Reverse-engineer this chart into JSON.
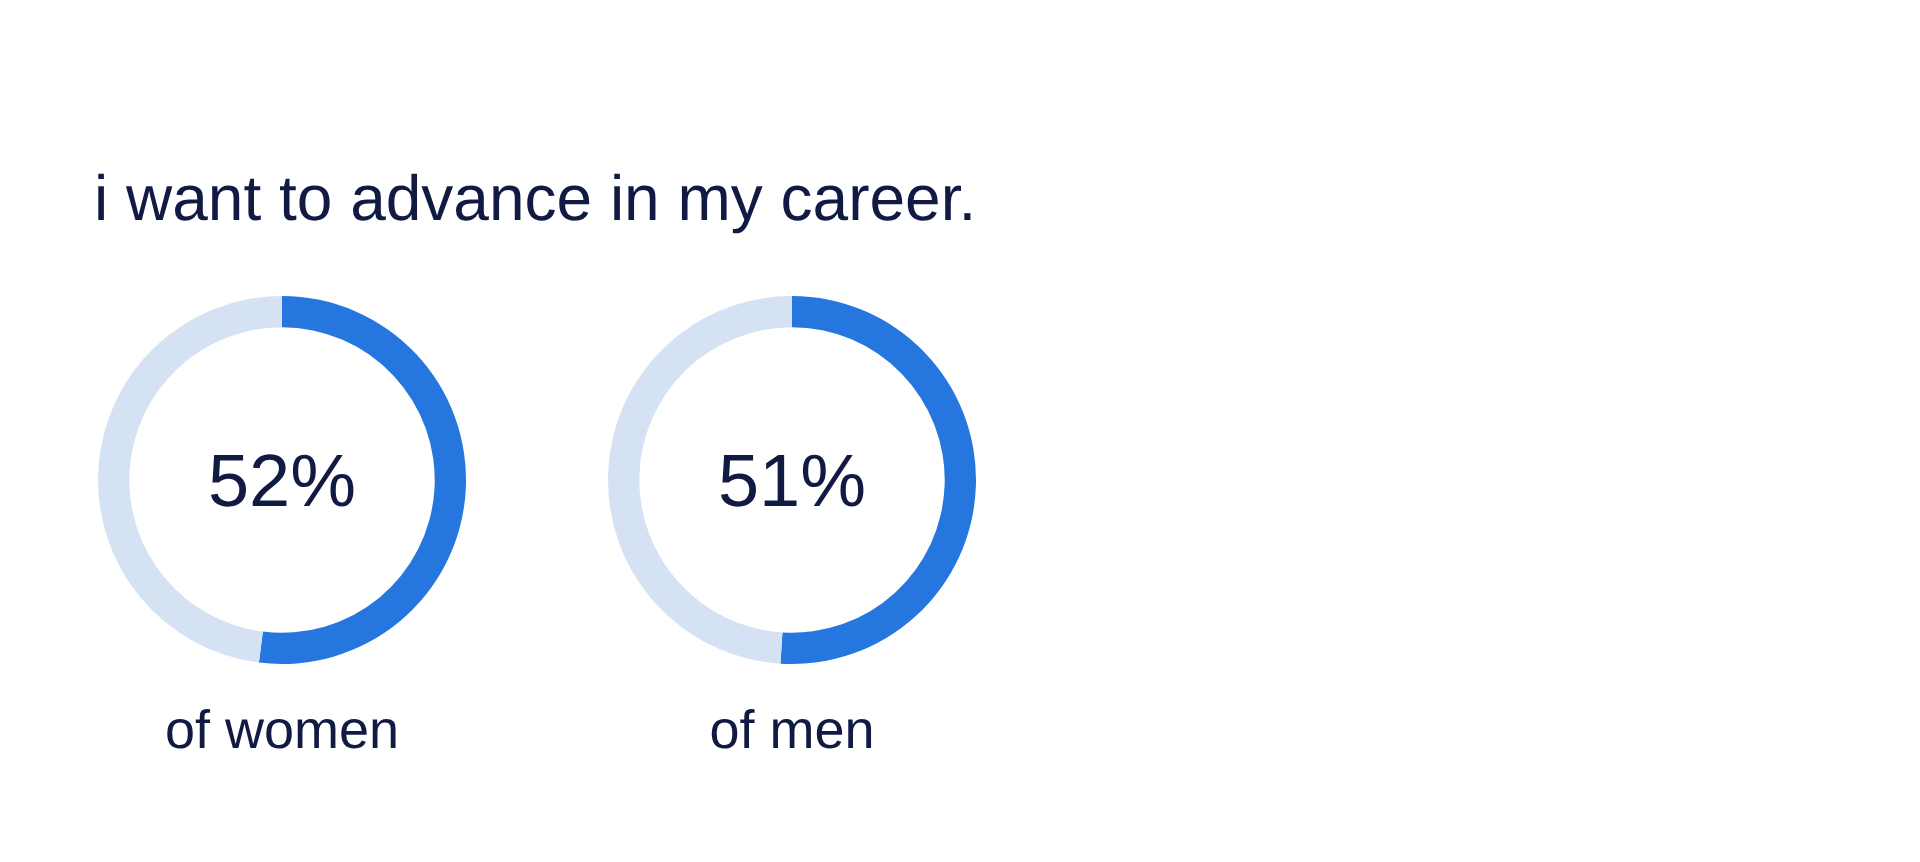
{
  "chart_data": [
    {
      "type": "donut",
      "title": "i want to advance in my career.",
      "categories": [
        null,
        null
      ],
      "values": [
        52,
        48
      ],
      "colors": [
        "#2576de",
        "#d5e2f4"
      ],
      "value_labels": [
        "52%",
        null
      ],
      "xlabel": "of women"
    },
    {
      "type": "donut",
      "categories": [
        null,
        null
      ],
      "values": [
        51,
        49
      ],
      "colors": [
        "#2576de",
        "#d5e2f4"
      ],
      "value_labels": [
        "51%",
        null
      ],
      "xlabel": "of men"
    }
  ]
}
